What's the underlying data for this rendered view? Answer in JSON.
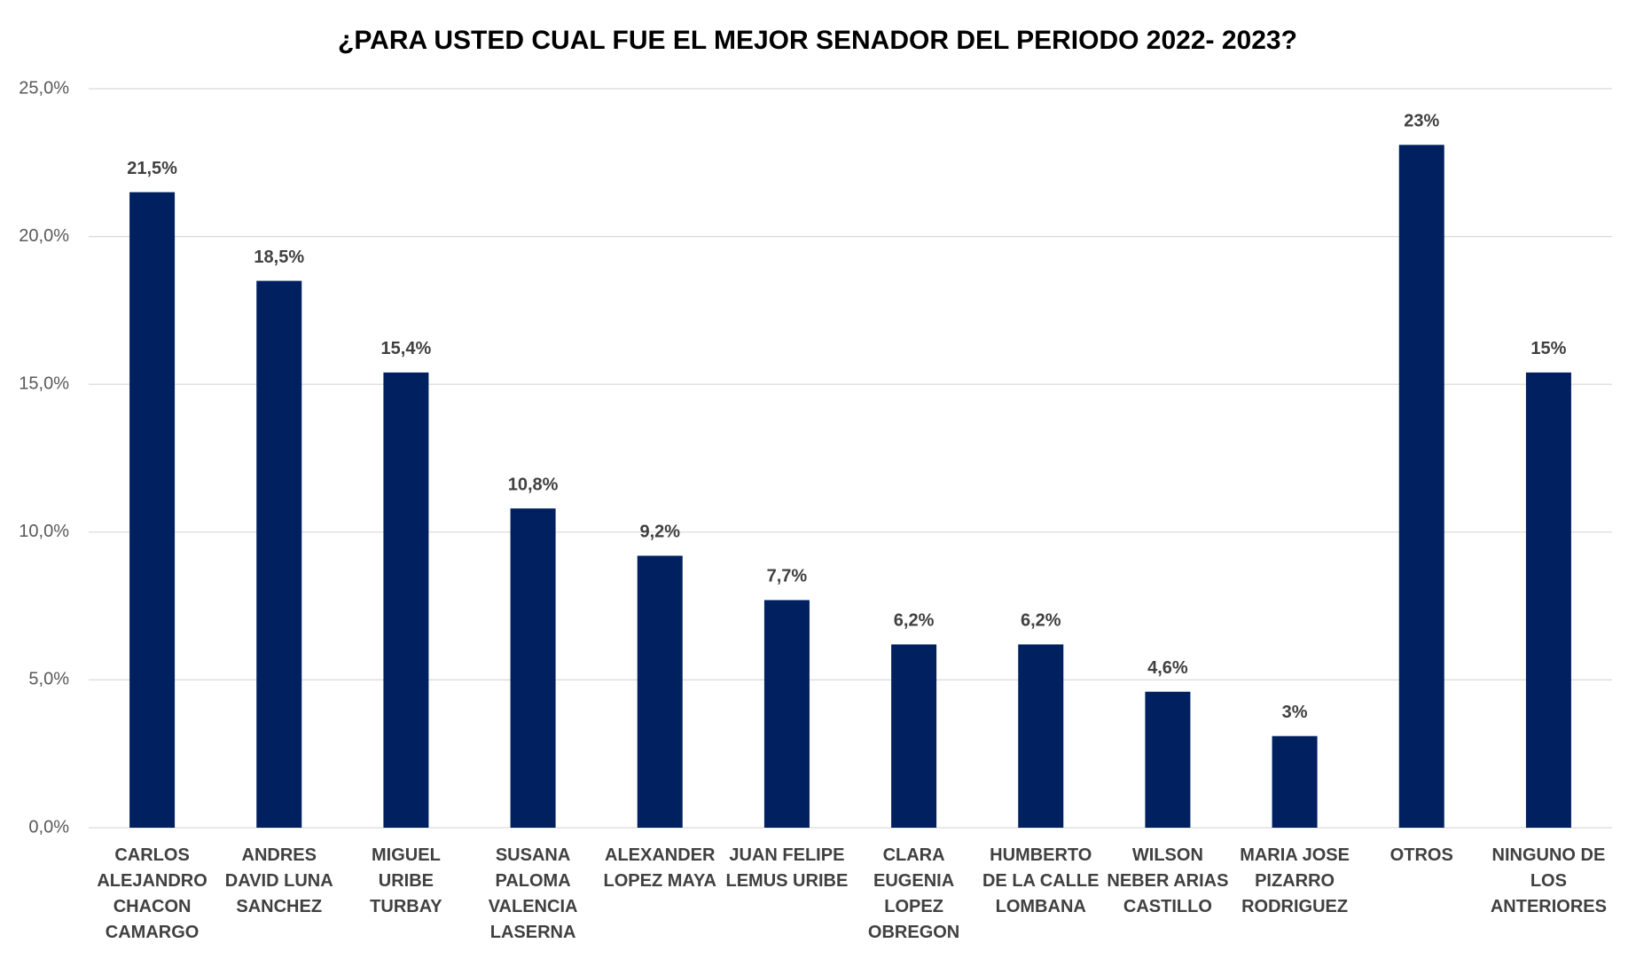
{
  "chart_data": {
    "type": "bar",
    "title": "¿PARA USTED CUAL FUE EL MEJOR SENADOR DEL PERIODO 2022- 2023?",
    "categories": [
      "CARLOS ALEJANDRO CHACON CAMARGO",
      "ANDRES DAVID LUNA SANCHEZ",
      "MIGUEL URIBE TURBAY",
      "SUSANA PALOMA VALENCIA LASERNA",
      "ALEXANDER LOPEZ MAYA",
      "JUAN FELIPE LEMUS URIBE",
      "CLARA EUGENIA LOPEZ OBREGON",
      "HUMBERTO DE LA CALLE LOMBANA",
      "WILSON NEBER ARIAS CASTILLO",
      "MARIA JOSE PIZARRO RODRIGUEZ",
      "OTROS",
      "NINGUNO DE LOS ANTERIORES"
    ],
    "values": [
      21.5,
      18.5,
      15.4,
      10.8,
      9.2,
      7.7,
      6.2,
      6.2,
      4.6,
      3.1,
      23.1,
      15.4
    ],
    "value_labels": [
      "21,5%",
      "18,5%",
      "15,4%",
      "10,8%",
      "9,2%",
      "7,7%",
      "6,2%",
      "6,2%",
      "4,6%",
      "3%",
      "23%",
      "15%"
    ],
    "color": "#002060",
    "ylim": [
      0,
      25
    ],
    "yticks": [
      {
        "value": 0,
        "label": "0,0%"
      },
      {
        "value": 5,
        "label": "5,0%"
      },
      {
        "value": 10,
        "label": "10,0%"
      },
      {
        "value": 15,
        "label": "15,0%"
      },
      {
        "value": 20,
        "label": "20,0%"
      },
      {
        "value": 25,
        "label": "25,0%"
      }
    ],
    "grid": true
  }
}
